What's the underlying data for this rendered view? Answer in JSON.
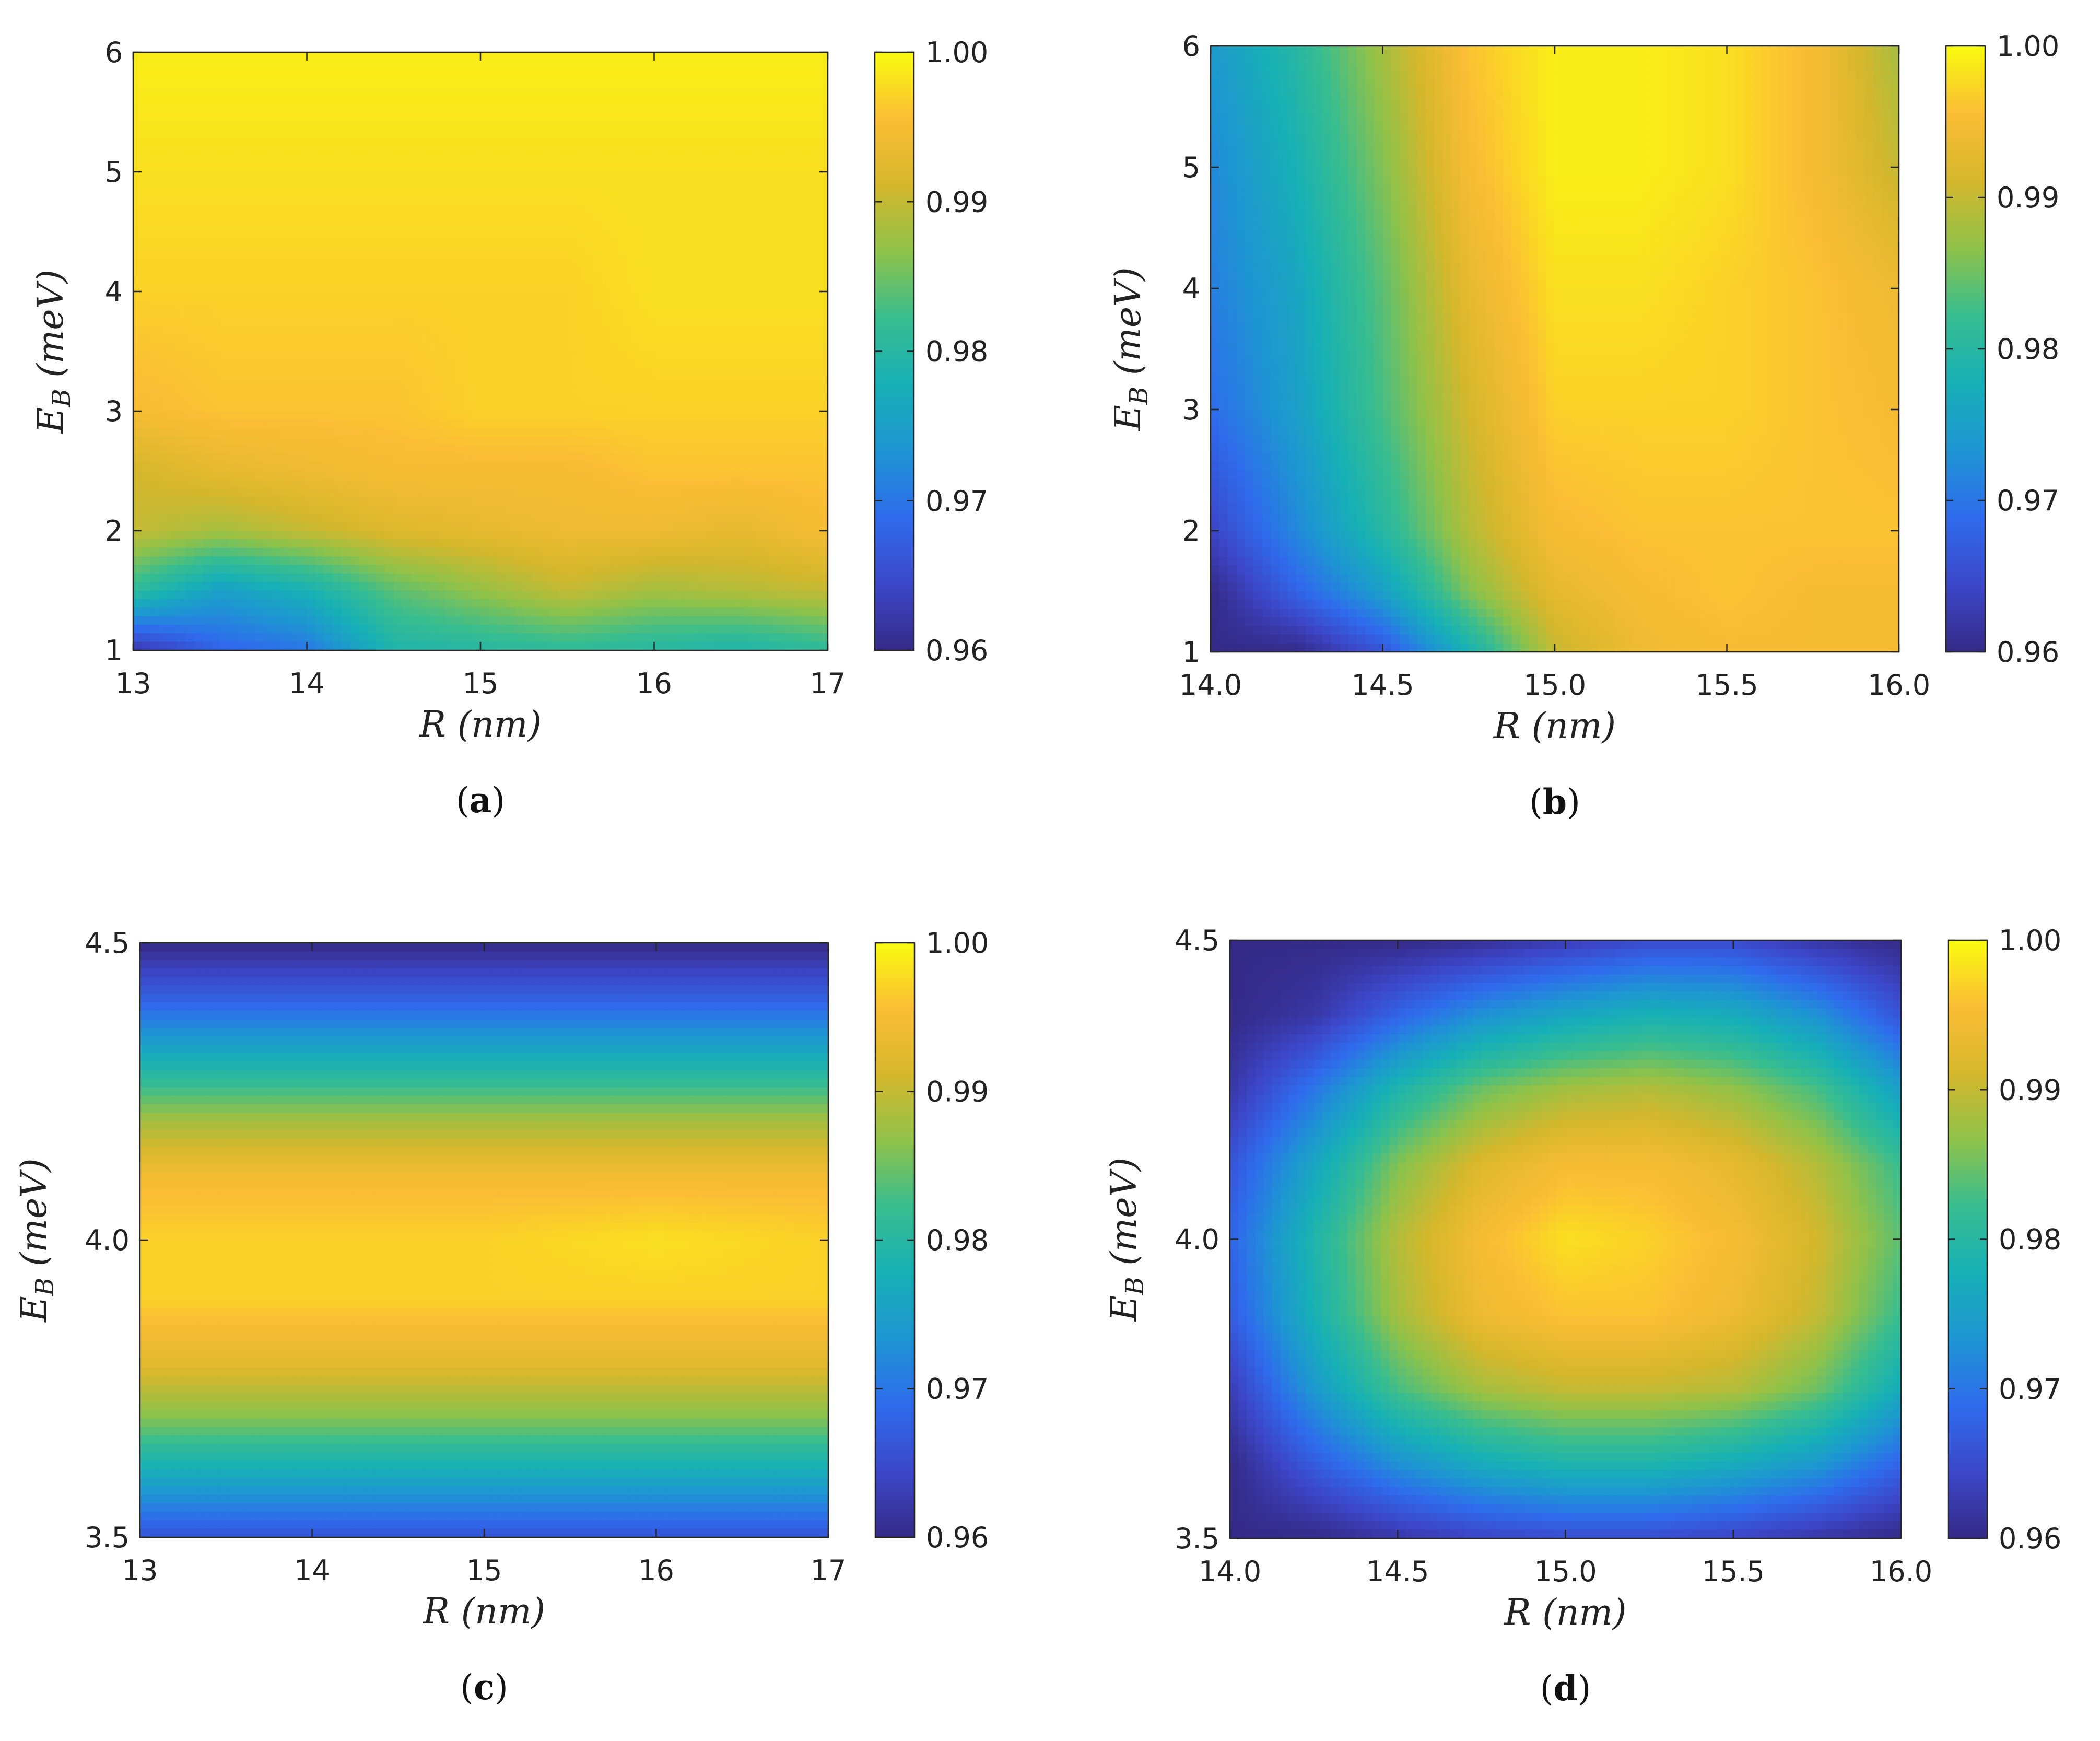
{
  "colors": {
    "viridis_low": "#3a2a9e",
    "viridis_mid": "#27b9a6",
    "viridis_high": "#f9fb0e",
    "colormap": [
      "#352a87",
      "#3c47c9",
      "#2f6bed",
      "#1e95d3",
      "#17b0b6",
      "#38bd8f",
      "#8fc249",
      "#d6b72c",
      "#fbbd35",
      "#f9fb0e"
    ]
  },
  "chart_data": [
    {
      "id": "a",
      "type": "heatmap",
      "caption": "a",
      "xlabel": "R (nm)",
      "ylabel": "E_B (meV)",
      "xlim": [
        13,
        17
      ],
      "ylim": [
        1,
        6
      ],
      "xticks": [
        "13",
        "14",
        "15",
        "16",
        "17"
      ],
      "yticks": [
        "1",
        "2",
        "3",
        "4",
        "5",
        "6"
      ],
      "colorbar": {
        "range": [
          0.96,
          1.0
        ],
        "ticks": [
          "0.96",
          "0.97",
          "0.98",
          "0.99",
          "1.00"
        ]
      },
      "x": [
        13,
        13.5,
        14,
        14.5,
        15,
        15.5,
        16,
        16.5,
        17
      ],
      "y": [
        1,
        1.5,
        2,
        2.5,
        3,
        4,
        5,
        6
      ],
      "z": [
        [
          0.962,
          0.968,
          0.97,
          0.979,
          0.98,
          0.981,
          0.98,
          0.979,
          0.981
        ],
        [
          0.981,
          0.975,
          0.978,
          0.984,
          0.987,
          0.99,
          0.988,
          0.989,
          0.99
        ],
        [
          0.99,
          0.988,
          0.99,
          0.992,
          0.993,
          0.994,
          0.994,
          0.993,
          0.995
        ],
        [
          0.991,
          0.993,
          0.994,
          0.995,
          0.995,
          0.995,
          0.996,
          0.996,
          0.996
        ],
        [
          0.995,
          0.996,
          0.996,
          0.996,
          0.997,
          0.997,
          0.997,
          0.997,
          0.997
        ],
        [
          0.997,
          0.997,
          0.997,
          0.997,
          0.997,
          0.997,
          0.998,
          0.998,
          0.998
        ],
        [
          0.998,
          0.998,
          0.998,
          0.998,
          0.998,
          0.998,
          0.998,
          0.998,
          0.998
        ],
        [
          0.999,
          0.999,
          0.999,
          0.999,
          0.999,
          0.999,
          0.999,
          0.999,
          0.999
        ]
      ]
    },
    {
      "id": "b",
      "type": "heatmap",
      "caption": "b",
      "xlabel": "R (nm)",
      "ylabel": "E_B (meV)",
      "xlim": [
        14,
        16
      ],
      "ylim": [
        1,
        6
      ],
      "xticks": [
        "14.0",
        "14.5",
        "15.0",
        "15.5",
        "16.0"
      ],
      "yticks": [
        "1",
        "2",
        "3",
        "4",
        "5",
        "6"
      ],
      "colorbar": {
        "range": [
          0.96,
          1.0
        ],
        "ticks": [
          "0.96",
          "0.97",
          "0.98",
          "0.99",
          "1.00"
        ]
      },
      "x": [
        14,
        14.25,
        14.5,
        14.75,
        15,
        15.25,
        15.5,
        15.75,
        16
      ],
      "y": [
        1,
        1.5,
        2,
        3,
        4,
        5,
        6
      ],
      "z": [
        [
          0.96,
          0.96,
          0.966,
          0.978,
          0.99,
          0.994,
          0.995,
          0.995,
          0.995
        ],
        [
          0.96,
          0.968,
          0.975,
          0.986,
          0.993,
          0.995,
          0.996,
          0.995,
          0.995
        ],
        [
          0.964,
          0.972,
          0.98,
          0.989,
          0.995,
          0.996,
          0.996,
          0.996,
          0.996
        ],
        [
          0.969,
          0.975,
          0.983,
          0.991,
          0.997,
          0.997,
          0.997,
          0.996,
          0.995
        ],
        [
          0.971,
          0.976,
          0.984,
          0.993,
          0.998,
          0.998,
          0.997,
          0.996,
          0.994
        ],
        [
          0.972,
          0.978,
          0.986,
          0.995,
          0.999,
          0.999,
          0.998,
          0.995,
          0.99
        ],
        [
          0.974,
          0.98,
          0.988,
          0.996,
          0.999,
          0.999,
          0.998,
          0.995,
          0.988
        ]
      ]
    },
    {
      "id": "c",
      "type": "heatmap",
      "caption": "c",
      "xlabel": "R (nm)",
      "ylabel": "E_B (meV)",
      "xlim": [
        13,
        17
      ],
      "ylim": [
        3.5,
        4.5
      ],
      "xticks": [
        "13",
        "14",
        "15",
        "16",
        "17"
      ],
      "yticks": [
        "3.5",
        "4.0",
        "4.5"
      ],
      "colorbar": {
        "range": [
          0.96,
          1.0
        ],
        "ticks": [
          "0.96",
          "0.97",
          "0.98",
          "0.99",
          "1.00"
        ]
      },
      "x": [
        13,
        14,
        15,
        16,
        17
      ],
      "y": [
        3.5,
        3.6,
        3.7,
        3.8,
        3.9,
        4.0,
        4.1,
        4.2,
        4.3,
        4.4,
        4.5
      ],
      "z": [
        [
          0.966,
          0.966,
          0.966,
          0.966,
          0.966
        ],
        [
          0.976,
          0.976,
          0.976,
          0.976,
          0.976
        ],
        [
          0.986,
          0.986,
          0.986,
          0.986,
          0.986
        ],
        [
          0.993,
          0.993,
          0.993,
          0.993,
          0.993
        ],
        [
          0.997,
          0.997,
          0.997,
          0.997,
          0.997
        ],
        [
          0.997,
          0.997,
          0.997,
          0.998,
          0.997
        ],
        [
          0.995,
          0.995,
          0.995,
          0.995,
          0.995
        ],
        [
          0.988,
          0.988,
          0.988,
          0.988,
          0.988
        ],
        [
          0.978,
          0.978,
          0.978,
          0.978,
          0.978
        ],
        [
          0.968,
          0.968,
          0.968,
          0.968,
          0.968
        ],
        [
          0.96,
          0.96,
          0.96,
          0.96,
          0.96
        ]
      ]
    },
    {
      "id": "d",
      "type": "heatmap",
      "caption": "d",
      "xlabel": "R (nm)",
      "ylabel": "E_B (meV)",
      "xlim": [
        14,
        16
      ],
      "ylim": [
        3.5,
        4.5
      ],
      "xticks": [
        "14.0",
        "14.5",
        "15.0",
        "15.5",
        "16.0"
      ],
      "yticks": [
        "3.5",
        "4.0",
        "4.5"
      ],
      "colorbar": {
        "range": [
          0.96,
          1.0
        ],
        "ticks": [
          "0.96",
          "0.97",
          "0.98",
          "0.99",
          "1.00"
        ]
      },
      "x": [
        14,
        14.25,
        14.5,
        14.75,
        15,
        15.25,
        15.5,
        15.75,
        16
      ],
      "y": [
        3.5,
        3.625,
        3.75,
        3.875,
        4.0,
        4.125,
        4.25,
        4.375,
        4.5
      ],
      "z": [
        [
          0.96,
          0.96,
          0.962,
          0.964,
          0.965,
          0.965,
          0.964,
          0.962,
          0.96
        ],
        [
          0.96,
          0.967,
          0.973,
          0.977,
          0.979,
          0.979,
          0.977,
          0.974,
          0.968
        ],
        [
          0.963,
          0.974,
          0.983,
          0.988,
          0.99,
          0.99,
          0.989,
          0.985,
          0.977
        ],
        [
          0.967,
          0.978,
          0.988,
          0.994,
          0.996,
          0.996,
          0.994,
          0.99,
          0.982
        ],
        [
          0.968,
          0.979,
          0.989,
          0.995,
          0.998,
          0.997,
          0.995,
          0.991,
          0.984
        ],
        [
          0.966,
          0.976,
          0.986,
          0.992,
          0.995,
          0.995,
          0.993,
          0.989,
          0.982
        ],
        [
          0.962,
          0.97,
          0.979,
          0.985,
          0.988,
          0.989,
          0.987,
          0.983,
          0.975
        ],
        [
          0.96,
          0.962,
          0.968,
          0.973,
          0.976,
          0.978,
          0.977,
          0.973,
          0.966
        ],
        [
          0.96,
          0.96,
          0.96,
          0.961,
          0.963,
          0.965,
          0.965,
          0.962,
          0.96
        ]
      ]
    }
  ]
}
